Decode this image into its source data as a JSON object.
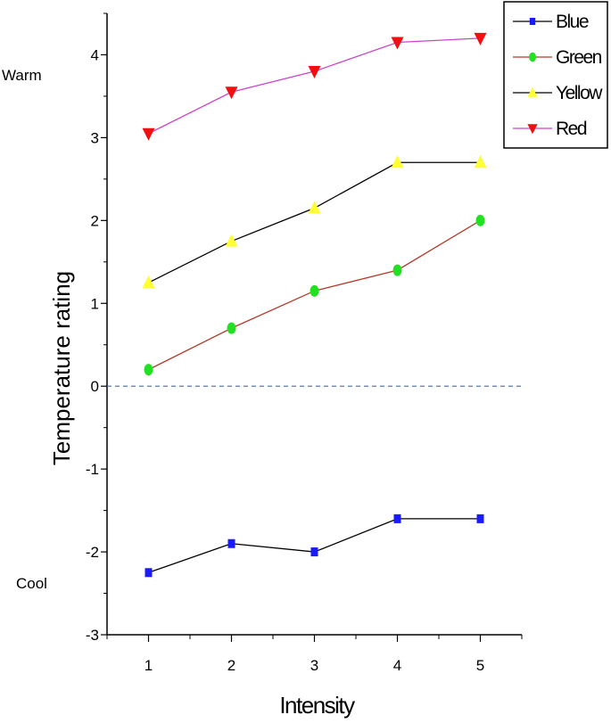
{
  "chart_data": {
    "type": "line",
    "title": "",
    "xlabel": "Intensity",
    "ylabel": "Temperature rating",
    "xlim": [
      0.5,
      5.5
    ],
    "ylim": [
      -3,
      4.5
    ],
    "x": [
      1,
      2,
      3,
      4,
      5
    ],
    "x_ticks": [
      "1",
      "2",
      "3",
      "4",
      "5"
    ],
    "y_ticks": [
      "-3",
      "-2",
      "-1",
      "0",
      "1",
      "2",
      "3",
      "4"
    ],
    "y_tick_values": [
      -3,
      -2,
      -1,
      0,
      1,
      2,
      3,
      4
    ],
    "reference_line": {
      "y": 0,
      "style": "dashed",
      "color": "#4a6b9a"
    },
    "annotations": {
      "warm": "Warm",
      "cool": "Cool"
    },
    "legend_position": "top-right",
    "series": [
      {
        "name": "Blue",
        "values": [
          -2.25,
          -1.9,
          -2.0,
          -1.6,
          -1.6
        ],
        "line_color": "#000000",
        "marker_color": "#1a1aff",
        "marker": "square"
      },
      {
        "name": "Green",
        "values": [
          0.2,
          0.7,
          1.15,
          1.4,
          2.0
        ],
        "line_color": "#b33a2a",
        "marker_color": "#22e022",
        "marker": "circle"
      },
      {
        "name": "Yellow",
        "values": [
          1.25,
          1.75,
          2.15,
          2.7,
          2.7
        ],
        "line_color": "#000000",
        "marker_color": "#ffff33",
        "marker": "triangle-up"
      },
      {
        "name": "Red",
        "values": [
          3.05,
          3.55,
          3.8,
          4.15,
          4.2
        ],
        "line_color": "#cc44cc",
        "marker_color": "#ee1111",
        "marker": "triangle-down"
      }
    ]
  }
}
